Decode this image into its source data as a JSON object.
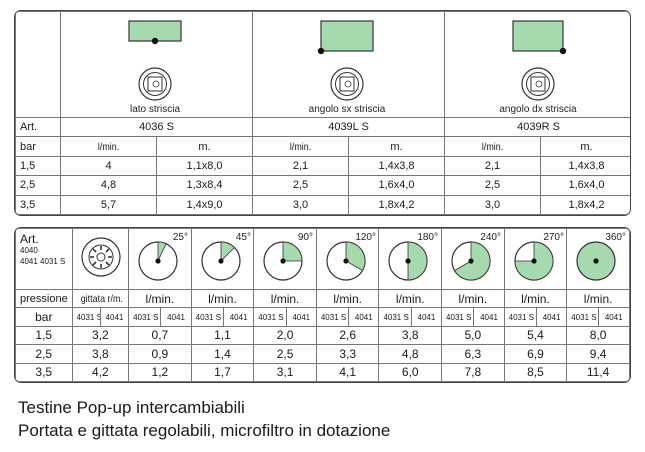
{
  "table1": {
    "models": [
      {
        "caption": "lato striscia",
        "code": "4036 S"
      },
      {
        "caption": "angolo sx striscia",
        "code": "4039L S"
      },
      {
        "caption": "angolo dx striscia",
        "code": "4039R S"
      }
    ],
    "art_label": "Art.",
    "bar_label": "bar",
    "flow_unit": "l/min.",
    "size_unit": "m.",
    "rows": [
      {
        "bar": "1,5",
        "vals": [
          "4",
          "1,1x8,0",
          "2,1",
          "1,4x3,8",
          "2,1",
          "1,4x3,8"
        ]
      },
      {
        "bar": "2,5",
        "vals": [
          "4,8",
          "1,3x8,4",
          "2,5",
          "1,6x4,0",
          "2,5",
          "1,6x4,0"
        ]
      },
      {
        "bar": "3,5",
        "vals": [
          "5,7",
          "1,4x9,0",
          "3,0",
          "1,8x4,2",
          "3,0",
          "1,8x4,2"
        ]
      }
    ]
  },
  "table2": {
    "art_label": "Art.",
    "art_codes": [
      "4040",
      "4041 4031 S"
    ],
    "angles": [
      "25°",
      "45°",
      "90°",
      "120°",
      "180°",
      "240°",
      "270°",
      "360°"
    ],
    "pressure_label": "pressione",
    "bar_label": "bar",
    "throw_label": "gittata r/m.",
    "flow_label": "l/min.",
    "sub_a": "4031 S",
    "sub_b": "4041",
    "rows": [
      {
        "bar": "1,5",
        "throw": [
          "3,2"
        ],
        "vals": [
          "0,7",
          "1,1",
          "2,0",
          "2,6",
          "3,8",
          "5,0",
          "5,4",
          "8,0"
        ]
      },
      {
        "bar": "2,5",
        "throw": [
          "3,8"
        ],
        "vals": [
          "0,9",
          "1,4",
          "2,5",
          "3,3",
          "4,8",
          "6,3",
          "6,9",
          "9,4"
        ]
      },
      {
        "bar": "3,5",
        "throw": [
          "4,2"
        ],
        "vals": [
          "1,2",
          "1,7",
          "3,1",
          "4,1",
          "6,0",
          "7,8",
          "8,5",
          "11,4"
        ]
      }
    ]
  },
  "captions": {
    "line1": "Testine Pop-up intercambiabili",
    "line2": "Portata e gittata regolabili, microfiltro in dotazione"
  },
  "colors": {
    "green": "#a6d9ad",
    "border": "#444444"
  }
}
